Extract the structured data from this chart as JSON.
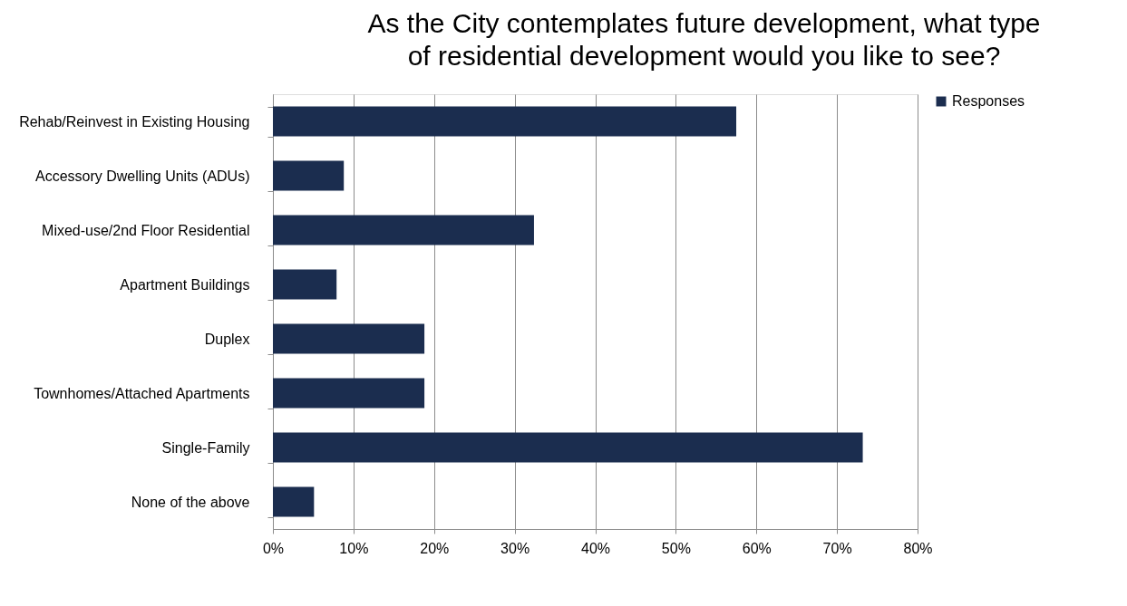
{
  "chart_data": {
    "type": "bar",
    "orientation": "horizontal",
    "title": "As the City contemplates future development, what type of residential development would you like to see?",
    "categories": [
      "Rehab/Reinvest in Existing Housing",
      "Accessory Dwelling Units (ADUs)",
      "Mixed-use/2nd Floor Residential",
      "Apartment Buildings",
      "Duplex",
      "Townhomes/Attached Apartments",
      "Single-Family",
      "None of the above"
    ],
    "series": [
      {
        "name": "Responses",
        "color": "#1b2d4f",
        "values": [
          57.5,
          8.8,
          32.4,
          7.9,
          18.8,
          18.8,
          73.2,
          5.1
        ]
      }
    ],
    "xlim": [
      0,
      80
    ],
    "xticks": [
      {
        "value": 0,
        "label": "0%"
      },
      {
        "value": 10,
        "label": "10%"
      },
      {
        "value": 20,
        "label": "20%"
      },
      {
        "value": 30,
        "label": "30%"
      },
      {
        "value": 40,
        "label": "40%"
      },
      {
        "value": 50,
        "label": "50%"
      },
      {
        "value": 60,
        "label": "60%"
      },
      {
        "value": 70,
        "label": "70%"
      },
      {
        "value": 80,
        "label": "80%"
      }
    ],
    "grid": "x",
    "legend": "right"
  }
}
